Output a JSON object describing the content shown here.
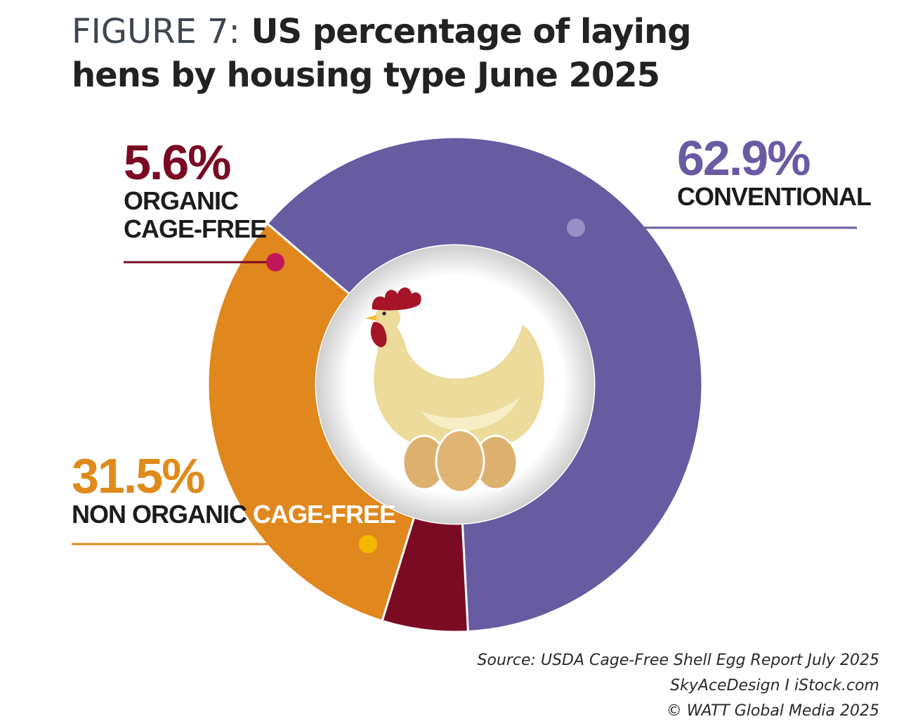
{
  "title": {
    "prefix": "FIGURE 7:",
    "main": "US percentage of laying hens by housing type June 2025"
  },
  "chart_data": {
    "type": "pie",
    "variant": "donut",
    "title": "US percentage of laying hens by housing type June 2025",
    "slices": [
      {
        "label": "CONVENTIONAL",
        "value": 62.9,
        "value_label": "62.9%",
        "color": "#675ba2"
      },
      {
        "label": "NON ORGANIC CAGE-FREE",
        "value": 31.5,
        "value_label": "31.5%",
        "color": "#e0871e"
      },
      {
        "label": "ORGANIC CAGE-FREE",
        "value": 5.6,
        "value_label": "5.6%",
        "color": "#7b0b22"
      }
    ]
  },
  "callouts": {
    "organic": {
      "value": "5.6%",
      "label_line1": "ORGANIC",
      "label_line2": "CAGE-FREE"
    },
    "conventional": {
      "value": "62.9%",
      "label": "CONVENTIONAL"
    },
    "nonorganic": {
      "value": "31.5%",
      "label_part_a": "NON ORGANIC ",
      "label_part_b": "CAGE-FREE"
    }
  },
  "center_image": {
    "icon": "hen-on-eggs-icon"
  },
  "credits": {
    "source": "Source: USDA Cage-Free Shell Egg Report July 2025",
    "image_credit": "SkyAceDesign I iStock.com",
    "copyright": "© WATT Global Media 2025"
  },
  "colors": {
    "conventional": "#675ba2",
    "nonorganic": "#e0871e",
    "organic": "#7b0b22",
    "organic_dot": "#c0165a",
    "conventional_dot": "#9a8fc6",
    "nonorganic_dot": "#f5b800"
  }
}
